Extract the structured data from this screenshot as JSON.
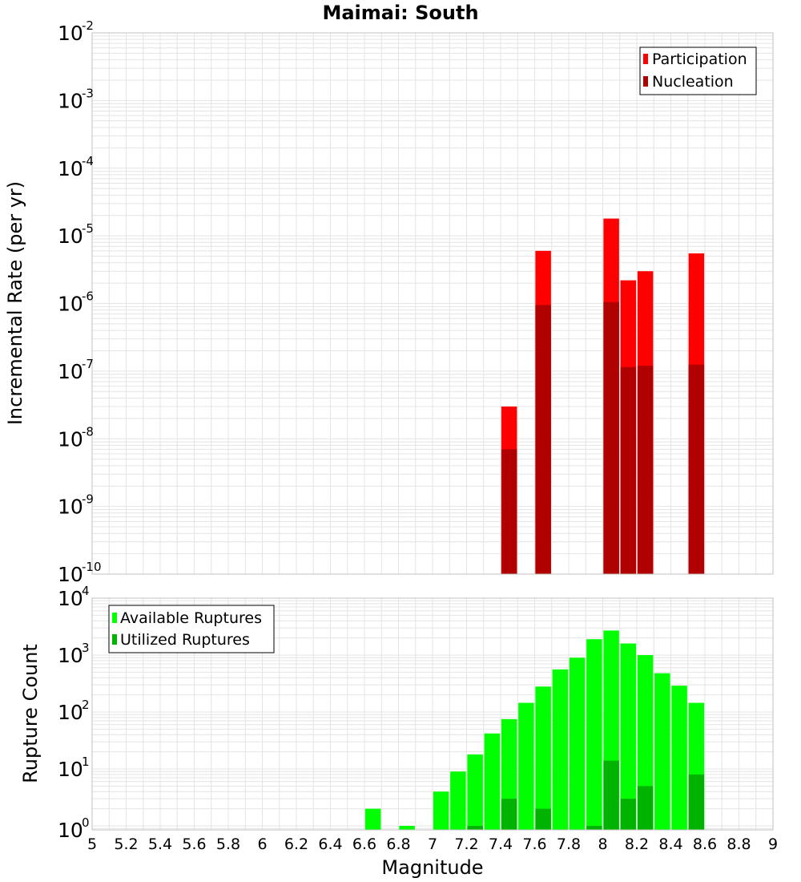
{
  "colors": {
    "participation": "#ff0000",
    "nucleation": "#b10000",
    "available": "#00ff00",
    "utilized": "#00b300",
    "grid": "#e4e4e4",
    "frame": "#c0c0c0"
  },
  "chart_data": {
    "type": "bar",
    "title": "Maimai: South",
    "xlabel": "Magnitude",
    "xlim": [
      5,
      9
    ],
    "xticks": [
      5,
      5.2,
      5.4,
      5.6,
      5.8,
      6,
      6.2,
      6.4,
      6.6,
      6.8,
      7,
      7.2,
      7.4,
      7.6,
      7.8,
      8,
      8.2,
      8.4,
      8.6,
      8.8,
      9
    ],
    "xtick_labels": [
      "5",
      "5.2",
      "5.4",
      "5.6",
      "5.8",
      "6",
      "6.2",
      "6.4",
      "6.6",
      "6.8",
      "7",
      "7.2",
      "7.4",
      "7.6",
      "7.8",
      "8",
      "8.2",
      "8.4",
      "8.6",
      "8.8",
      "9"
    ],
    "panels": [
      {
        "name": "rate",
        "ylabel": "Incremental Rate (per yr)",
        "yscale": "log",
        "ylim": [
          1e-10,
          0.01
        ],
        "ytick_exponents": [
          "-2",
          "-3",
          "-4",
          "-5",
          "-6",
          "-7",
          "-8",
          "-9",
          "-10"
        ],
        "ytick_base": "10",
        "legend_position": "top-right",
        "series": [
          {
            "name": "Participation",
            "x": [
              7.45,
              7.65,
              8.05,
              8.15,
              8.25,
              8.55
            ],
            "values": [
              3e-08,
              6e-06,
              1.8e-05,
              2.2e-06,
              3e-06,
              5.5e-06
            ]
          },
          {
            "name": "Nucleation",
            "x": [
              7.45,
              7.65,
              8.05,
              8.15,
              8.25,
              8.55
            ],
            "values": [
              7e-09,
              9.5e-07,
              1.05e-06,
              1.15e-07,
              1.2e-07,
              1.25e-07
            ]
          }
        ]
      },
      {
        "name": "count",
        "ylabel": "Rupture Count",
        "yscale": "log",
        "ylim": [
          0.85,
          10000
        ],
        "ytick_exponents": [
          "4",
          "3",
          "2",
          "1",
          "0"
        ],
        "ytick_base": "10",
        "legend_position": "top-left",
        "series": [
          {
            "name": "Available Ruptures",
            "x": [
              6.65,
              6.85,
              7.05,
              7.15,
              7.25,
              7.35,
              7.45,
              7.55,
              7.65,
              7.75,
              7.85,
              7.95,
              8.05,
              8.15,
              8.25,
              8.35,
              8.45,
              8.55
            ],
            "values": [
              2,
              1,
              4,
              9,
              18,
              42,
              75,
              145,
              280,
              560,
              900,
              1900,
              2700,
              1600,
              1000,
              480,
              290,
              145
            ]
          },
          {
            "name": "Utilized Ruptures",
            "x": [
              7.25,
              7.45,
              7.65,
              7.95,
              8.05,
              8.15,
              8.25,
              8.55
            ],
            "values": [
              1,
              3,
              2,
              1,
              14,
              3,
              5,
              8
            ]
          }
        ]
      }
    ]
  }
}
